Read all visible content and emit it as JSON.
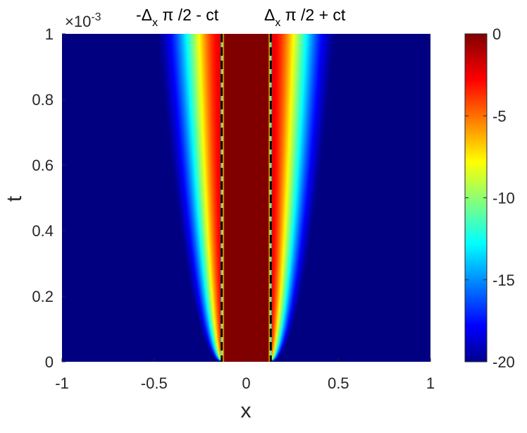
{
  "chart_data": {
    "type": "heatmap",
    "title": "",
    "xlabel": "x",
    "ylabel": "t",
    "xlim": [
      -1,
      1
    ],
    "ylim": [
      0,
      0.001
    ],
    "y_exponent_label": "×10",
    "y_exponent_power": "-3",
    "xticks": [
      "-1",
      "-0.5",
      "0",
      "0.5",
      "1"
    ],
    "yticks": [
      "0",
      "0.2",
      "0.4",
      "0.6",
      "0.8",
      "1"
    ],
    "colorbar": {
      "colormap": "jet",
      "clim": [
        -20,
        0
      ],
      "ticks": [
        "0",
        "-5",
        "-10",
        "-15",
        "-20"
      ]
    },
    "field": {
      "description_of_surface_values": "log-scale magnitude, saturated at 0 inside |x| < 0.12, decaying outward and spreading with t",
      "core_half_width": 0.12,
      "initial_edge_width": 0.02,
      "spread_rate": 0.33
    },
    "dashed_lines": [
      {
        "x_at_t0": -0.133,
        "x_at_tmax": -0.133,
        "label_parts": [
          "-Δ",
          "x",
          " π /2 - ct"
        ]
      },
      {
        "x_at_t0": 0.133,
        "x_at_tmax": 0.133,
        "label_parts": [
          "Δ",
          "x",
          " π /2 + ct"
        ]
      }
    ]
  }
}
